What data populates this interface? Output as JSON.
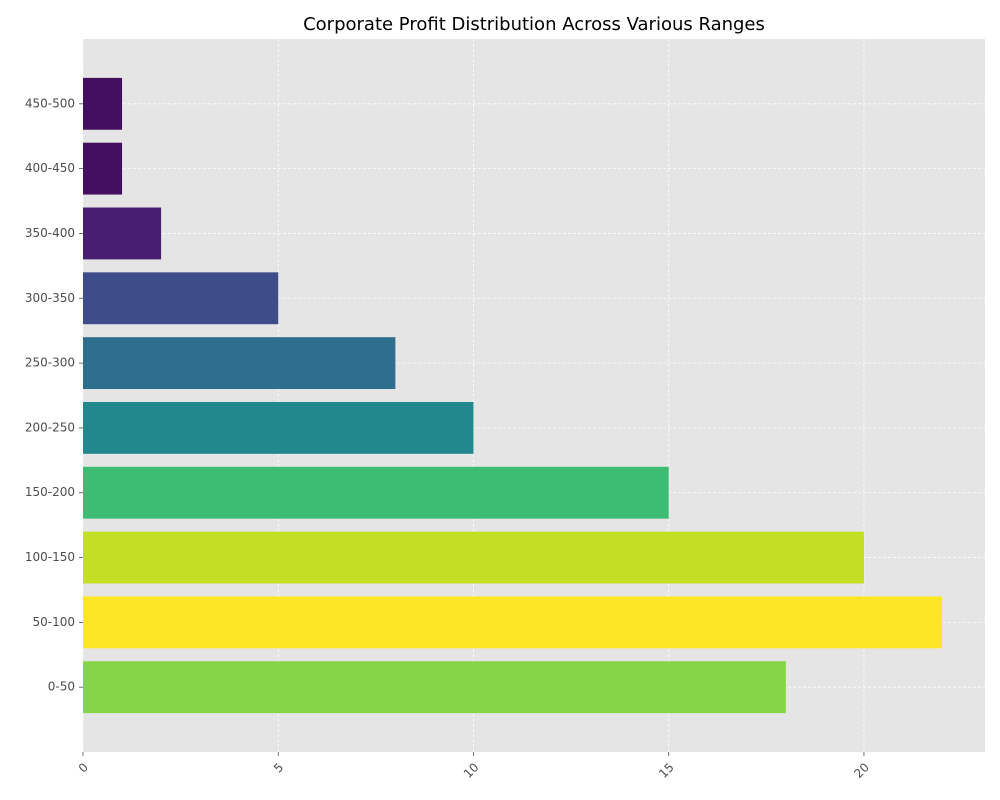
{
  "chart_data": {
    "type": "bar",
    "orientation": "horizontal",
    "title": "Corporate Profit Distribution Across Various Ranges",
    "xlabel": "",
    "ylabel": "",
    "categories": [
      "0-50",
      "50-100",
      "100-150",
      "150-200",
      "200-250",
      "250-300",
      "300-350",
      "350-400",
      "400-450",
      "450-500"
    ],
    "values": [
      18,
      22,
      20,
      15,
      10,
      8,
      5,
      2,
      1,
      1
    ],
    "colors": [
      "#86d549",
      "#fde725",
      "#c2df23",
      "#3dbc74",
      "#23888e",
      "#2e6e8e",
      "#3e4c8a",
      "#481f70",
      "#440f5f",
      "#440f5f"
    ],
    "xlim": [
      0,
      23.1
    ],
    "xticks": [
      "0",
      "5",
      "10",
      "15",
      "20"
    ],
    "grid": true,
    "background": "#e5e5e5"
  }
}
